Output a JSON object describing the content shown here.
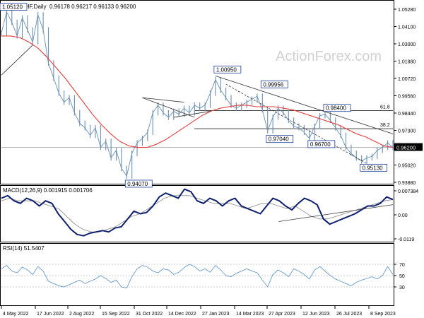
{
  "chart_data": {
    "type": "line",
    "title": "EURCHF,Daily",
    "ohlc_label": "0.96178 0.96217 0.96133 0.96200",
    "watermark": "ActionForex.com",
    "colors": {
      "price": "#6a8fb0",
      "ema": "#e23c3c",
      "macd": "#0d1f6e",
      "signal": "#8a8a8a",
      "rsi": "#6699cc",
      "trend": "#333333",
      "label_border": "#1a3a9a",
      "current_box": "#000000"
    },
    "x_labels": [
      "4 May 2022",
      "17 Jun 2022",
      "2 Aug 2022",
      "15 Sep 2022",
      "31 Oct 2022",
      "14 Dec 2022",
      "27 Jan 2023",
      "14 Mar 2023",
      "27 Apr 2023",
      "12 Jun 2023",
      "26 Jul 2023",
      "8 Sep 2023"
    ],
    "price": {
      "ylim": [
        0.9388,
        1.058
      ],
      "ticks": [
        "1.05280",
        "1.04100",
        "1.03000",
        "1.01880",
        "1.00720",
        "0.99560",
        "0.98440",
        "0.97300",
        "0.96200",
        "0.95020",
        "0.93880"
      ],
      "current": "0.96200",
      "close_series": [
        1.038,
        1.052,
        1.045,
        1.036,
        1.048,
        1.04,
        1.032,
        1.05,
        1.04,
        1.018,
        1.008,
        0.998,
        0.992,
        0.995,
        0.985,
        0.978,
        0.975,
        0.97,
        0.975,
        0.962,
        0.966,
        0.955,
        0.96,
        0.948,
        0.943,
        0.958,
        0.965,
        0.968,
        0.972,
        0.985,
        0.99,
        0.985,
        0.982,
        0.986,
        0.984,
        0.988,
        0.985,
        0.99,
        0.988,
        0.99,
        0.998,
        1.007,
        1.0,
        0.995,
        0.99,
        0.988,
        0.99,
        0.992,
        0.994,
        0.996,
        0.987,
        0.973,
        0.982,
        0.988,
        0.985,
        0.98,
        0.976,
        0.975,
        0.972,
        0.968,
        0.976,
        0.983,
        0.984,
        0.98,
        0.975,
        0.97,
        0.962,
        0.958,
        0.955,
        0.953,
        0.955,
        0.956,
        0.96,
        0.962,
        0.965,
        0.962
      ],
      "ema_series": [
        1.036,
        1.036,
        1.035,
        1.032,
        1.028,
        1.022,
        1.015,
        1.008,
        1.0,
        0.992,
        0.984,
        0.977,
        0.971,
        0.966,
        0.963,
        0.962,
        0.962,
        0.964,
        0.967,
        0.971,
        0.975,
        0.979,
        0.983,
        0.986,
        0.988,
        0.989,
        0.99,
        0.99,
        0.989,
        0.989,
        0.989,
        0.988,
        0.987,
        0.985,
        0.983,
        0.981,
        0.979,
        0.977,
        0.974,
        0.971,
        0.969,
        0.966,
        0.963,
        0.962
      ],
      "levels": [
        {
          "label": "1.05120",
          "value": 1.0512,
          "x_index": 0,
          "pos": "above"
        },
        {
          "label": "0.94070",
          "value": 0.9407,
          "x_index": 24,
          "pos": "below"
        },
        {
          "label": "1.00950",
          "value": 1.0095,
          "x_index": 41,
          "pos": "above"
        },
        {
          "label": "0.99956",
          "value": 0.9996,
          "x_index": 50,
          "pos": "above"
        },
        {
          "label": "0.97040",
          "value": 0.9704,
          "x_index": 51,
          "pos": "below"
        },
        {
          "label": "0.98400",
          "value": 0.984,
          "x_index": 62,
          "pos": "above"
        },
        {
          "label": "0.96700",
          "value": 0.967,
          "x_index": 59,
          "pos": "below"
        },
        {
          "label": "0.95130",
          "value": 0.9513,
          "x_index": 69,
          "pos": "below"
        }
      ],
      "fib_levels": [
        {
          "label": "61.8",
          "value": 0.9865
        },
        {
          "label": "38.2",
          "value": 0.9744
        }
      ]
    },
    "macd": {
      "label": "MACD(12,26,9) 0.001915 0.001706",
      "ylim": [
        -0.0125,
        0.0085
      ],
      "ticks": [
        "0.007384",
        "0.00",
        "-0.0119"
      ],
      "macd_series": [
        0.004,
        0.005,
        0.003,
        0.002,
        0.004,
        0.003,
        0.001,
        0.003,
        0.002,
        -0.002,
        -0.005,
        -0.008,
        -0.01,
        -0.0105,
        -0.0095,
        -0.009,
        -0.0085,
        -0.009,
        -0.0075,
        -0.007,
        -0.004,
        -0.001,
        -0.002,
        -0.0015,
        0.001,
        0.0045,
        0.006,
        0.005,
        0.004,
        0.0075,
        0.0065,
        0.003,
        0.002,
        0.004,
        0.003,
        0.001,
        0.003,
        0.004,
        0.001,
        0.0,
        -0.001,
        -0.002,
        0.001,
        0.004,
        0.003,
        0.001,
        -0.0005,
        0.002,
        0.004,
        0.003,
        0.0015,
        -0.004,
        -0.006,
        -0.005,
        -0.004,
        -0.003,
        -0.002,
        -0.0005,
        0.001,
        0.001,
        0.002,
        0.0045,
        0.0035
      ],
      "signal_series": [
        0.003,
        0.004,
        0.003,
        0.003,
        0.003,
        0.002,
        0.001,
        0.0,
        -0.003,
        -0.006,
        -0.008,
        -0.009,
        -0.009,
        -0.008,
        -0.007,
        -0.005,
        -0.003,
        -0.002,
        0.0,
        0.002,
        0.004,
        0.005,
        0.005,
        0.005,
        0.004,
        0.003,
        0.002,
        0.002,
        0.002,
        0.001,
        0.0,
        0.001,
        0.002,
        0.002,
        0.001,
        0.0,
        0.001,
        -0.001,
        -0.003,
        -0.004,
        -0.004,
        -0.003,
        -0.002,
        -0.001,
        0.0,
        0.001,
        0.002,
        0.003,
        0.0035
      ]
    },
    "rsi": {
      "label": "RSI(14) 51.5407",
      "ylim": [
        0,
        100
      ],
      "ticks": [
        "70",
        "50",
        "30"
      ],
      "series": [
        62,
        68,
        58,
        55,
        65,
        60,
        52,
        66,
        58,
        40,
        36,
        32,
        30,
        34,
        38,
        42,
        36,
        40,
        44,
        50,
        45,
        38,
        42,
        30,
        28,
        48,
        62,
        68,
        65,
        58,
        55,
        62,
        60,
        52,
        56,
        64,
        70,
        66,
        58,
        62,
        56,
        68,
        60,
        50,
        48,
        54,
        58,
        62,
        58,
        55,
        42,
        30,
        52,
        60,
        55,
        48,
        62,
        58,
        52,
        44,
        60,
        66,
        58,
        50,
        44,
        40,
        36,
        32,
        38,
        42,
        45,
        48,
        44,
        50,
        66,
        52
      ]
    }
  }
}
